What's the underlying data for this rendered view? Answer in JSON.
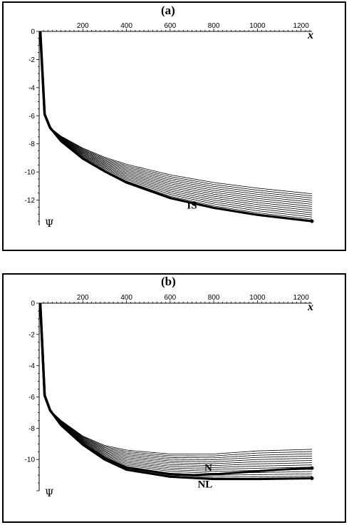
{
  "chart_data": [
    {
      "type": "line",
      "panel_label": "(a)",
      "xlabel": "x",
      "ylabel": "Ψ",
      "xlim": [
        0,
        1250
      ],
      "ylim": [
        -13.8,
        0
      ],
      "x_ticks": [
        200,
        400,
        600,
        800,
        1000,
        1200
      ],
      "y_ticks": [
        0,
        -2,
        -4,
        -6,
        -8,
        -10,
        -12
      ],
      "curve_family": {
        "count": 14,
        "x": [
          5,
          25,
          50,
          100,
          200,
          300,
          400,
          600,
          800,
          1000,
          1250
        ],
        "top_curve": [
          0,
          -5.9,
          -6.85,
          -7.45,
          -8.3,
          -8.95,
          -9.45,
          -10.2,
          -10.75,
          -11.15,
          -11.55
        ],
        "bottom_curve": [
          0,
          -5.9,
          -6.85,
          -7.8,
          -9.05,
          -9.95,
          -10.75,
          -11.85,
          -12.55,
          -13.05,
          -13.5
        ]
      },
      "annotations": [
        {
          "text": "IS",
          "x": 700,
          "y": -12.6
        }
      ]
    },
    {
      "type": "line",
      "panel_label": "(b)",
      "xlabel": "x",
      "ylabel": "Ψ",
      "xlim": [
        0,
        1250
      ],
      "ylim": [
        -12,
        0
      ],
      "x_ticks": [
        200,
        400,
        600,
        800,
        1000,
        1200
      ],
      "y_ticks": [
        0,
        -2,
        -4,
        -6,
        -8,
        -10
      ],
      "curve_family": {
        "count": 14,
        "x": [
          5,
          25,
          50,
          100,
          200,
          300,
          400,
          600,
          800,
          1000,
          1250
        ],
        "top_curve": [
          0,
          -5.9,
          -6.85,
          -7.5,
          -8.5,
          -9.1,
          -9.4,
          -9.65,
          -9.65,
          -9.45,
          -9.35
        ],
        "bottom_curve": [
          0,
          -5.9,
          -6.85,
          -7.8,
          -9.05,
          -10.0,
          -10.65,
          -11.1,
          -11.25,
          -11.25,
          -11.2
        ]
      },
      "highlight_curve": {
        "x": [
          5,
          25,
          50,
          100,
          200,
          300,
          400,
          600,
          700,
          800,
          900,
          1000,
          1100,
          1250
        ],
        "y": [
          0,
          -5.9,
          -6.85,
          -7.75,
          -9.0,
          -9.9,
          -10.5,
          -10.95,
          -11.0,
          -10.95,
          -10.85,
          -10.75,
          -10.65,
          -10.55
        ]
      },
      "annotations": [
        {
          "text": "N",
          "x": 775,
          "y": -10.75
        },
        {
          "text": "NL",
          "x": 760,
          "y": -11.8
        }
      ]
    }
  ]
}
